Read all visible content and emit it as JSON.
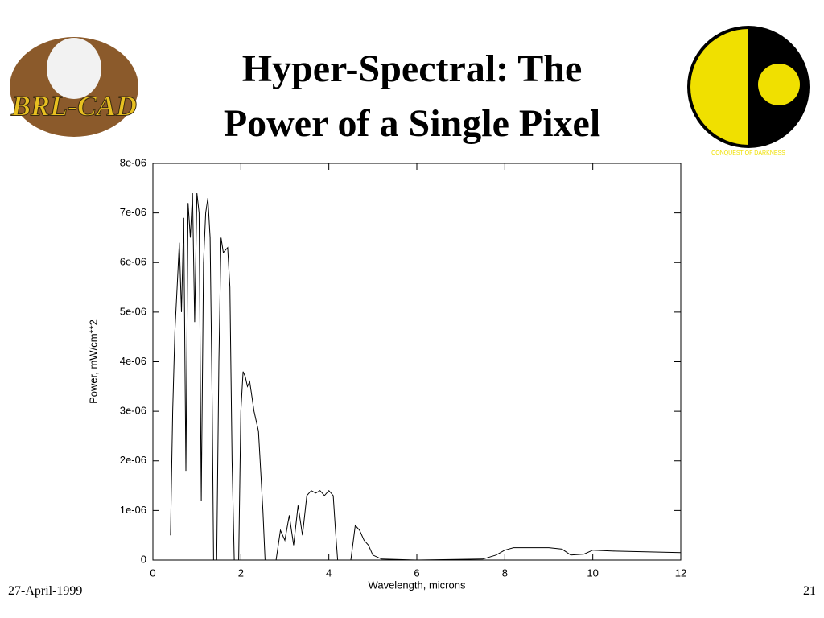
{
  "chart_data": {
    "type": "line",
    "title": "Hyper-Spectral: The Power of a Single Pixel",
    "xlabel": "Wavelength, microns",
    "ylabel": "Power, mW/cm**2",
    "x": [
      0.4,
      0.45,
      0.5,
      0.55,
      0.6,
      0.65,
      0.7,
      0.75,
      0.8,
      0.85,
      0.9,
      0.95,
      1.0,
      1.05,
      1.1,
      1.15,
      1.2,
      1.25,
      1.3,
      1.35,
      1.38,
      1.45,
      1.5,
      1.55,
      1.6,
      1.7,
      1.75,
      1.8,
      1.85,
      1.95,
      2.0,
      2.05,
      2.1,
      2.15,
      2.2,
      2.3,
      2.4,
      2.5,
      2.55,
      2.8,
      2.9,
      3.0,
      3.1,
      3.2,
      3.3,
      3.4,
      3.5,
      3.6,
      3.7,
      3.8,
      3.9,
      4.0,
      4.1,
      4.15,
      4.2,
      4.5,
      4.6,
      4.7,
      4.8,
      4.9,
      5.0,
      5.2,
      6.0,
      7.5,
      7.8,
      8.0,
      8.2,
      8.5,
      9.0,
      9.3,
      9.5,
      9.8,
      10.0,
      10.5,
      11.0,
      12.0
    ],
    "values": [
      5e-07,
      3e-06,
      4.6e-06,
      5.5e-06,
      6.4e-06,
      5e-06,
      6.9e-06,
      1.8e-06,
      7.2e-06,
      6.5e-06,
      7.4e-06,
      4.8e-06,
      7.4e-06,
      7e-06,
      1.2e-06,
      6e-06,
      7e-06,
      7.3e-06,
      6.5e-06,
      3e-06,
      0,
      0,
      4e-06,
      6.5e-06,
      6.2e-06,
      6.3e-06,
      5.5e-06,
      2e-06,
      0,
      0,
      3e-06,
      3.8e-06,
      3.7e-06,
      3.5e-06,
      3.6e-06,
      3e-06,
      2.6e-06,
      1e-06,
      0,
      0,
      6e-07,
      4e-07,
      9e-07,
      3e-07,
      1.1e-06,
      5e-07,
      1.3e-06,
      1.4e-06,
      1.35e-06,
      1.4e-06,
      1.3e-06,
      1.4e-06,
      1.3e-06,
      6e-07,
      0,
      0,
      7e-07,
      6e-07,
      4e-07,
      3e-07,
      1e-07,
      2e-08,
      0,
      2e-08,
      1e-07,
      2e-07,
      2.5e-07,
      2.5e-07,
      2.5e-07,
      2.2e-07,
      1e-07,
      1.2e-07,
      2e-07,
      1.8e-07,
      1.7e-07,
      1.5e-07
    ],
    "color": "#000000",
    "xlim": [
      0,
      12
    ],
    "xticks": [
      0,
      2,
      4,
      6,
      8,
      10,
      12
    ],
    "ylim": [
      0,
      8e-06
    ],
    "yticks": [
      0,
      {
        "value": 1e-06,
        "label": "1e-06"
      },
      {
        "value": 2e-06,
        "label": "2e-06"
      },
      {
        "value": 3e-06,
        "label": "3e-06"
      },
      {
        "value": 4e-06,
        "label": "4e-06"
      },
      {
        "value": 5e-06,
        "label": "5e-06"
      },
      {
        "value": 6e-06,
        "label": "6e-06"
      },
      {
        "value": 7e-06,
        "label": "7e-06"
      },
      {
        "value": 8e-06,
        "label": "8e-06"
      }
    ],
    "grid": false
  },
  "logos": {
    "left": "BRL-CAD",
    "right": "CONQUEST OF DARKNESS"
  },
  "footer": {
    "date": "27-April-1999",
    "page": "21"
  }
}
